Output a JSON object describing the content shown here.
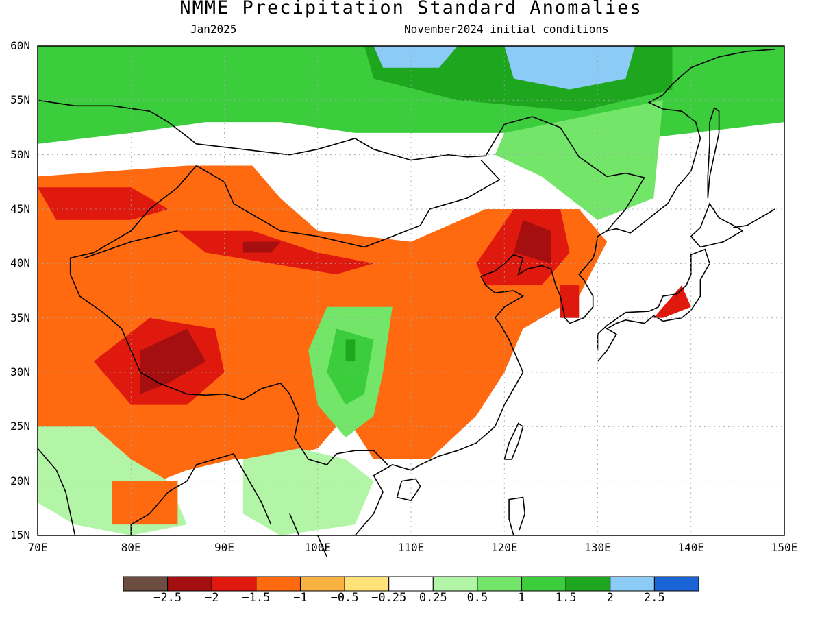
{
  "title": "NMME Precipitation Standard Anomalies",
  "subtitle_left": "Jan2025",
  "subtitle_right": "November2024 initial conditions",
  "map": {
    "lon_range": [
      70,
      150
    ],
    "lat_range": [
      15,
      60
    ],
    "lat_labels": [
      "60N",
      "55N",
      "50N",
      "45N",
      "40N",
      "35N",
      "30N",
      "25N",
      "20N",
      "15N"
    ],
    "lon_labels": [
      "70E",
      "80E",
      "90E",
      "100E",
      "110E",
      "120E",
      "130E",
      "140E",
      "150E"
    ],
    "grid": true
  },
  "colorbar": {
    "colors": [
      "#6d4c41",
      "#a50f0f",
      "#e0190e",
      "#ff6a10",
      "#f9b142",
      "#ffe27a",
      "#ffffff",
      "#b3f5a7",
      "#73e66a",
      "#3ccd3c",
      "#1fa61f",
      "#8ccbf5",
      "#1a64d6"
    ],
    "labels": [
      "−2.5",
      "−2",
      "−1.5",
      "−1",
      "−0.5",
      "−0.25",
      "0.25",
      "0.5",
      "1",
      "1.5",
      "2",
      "2.5"
    ]
  },
  "anomaly_regions": [
    {
      "name": "siberia-north",
      "level": 1.5,
      "poly": [
        [
          70,
          60
        ],
        [
          150,
          60
        ],
        [
          150,
          53
        ],
        [
          130,
          51
        ],
        [
          120,
          52
        ],
        [
          112,
          52
        ],
        [
          104,
          52
        ],
        [
          96,
          53
        ],
        [
          88,
          53
        ],
        [
          80,
          52
        ],
        [
          70,
          51
        ]
      ]
    },
    {
      "name": "siberia-wet-inner",
      "level": 2,
      "poly": [
        [
          105,
          60
        ],
        [
          138,
          60
        ],
        [
          138,
          56
        ],
        [
          128,
          54
        ],
        [
          115,
          55
        ],
        [
          106,
          57
        ]
      ]
    },
    {
      "name": "siberia-blue-1",
      "level": 2.5,
      "poly": [
        [
          120,
          60
        ],
        [
          134,
          60
        ],
        [
          133,
          57
        ],
        [
          127,
          56
        ],
        [
          121,
          57
        ]
      ]
    },
    {
      "name": "siberia-blue-2",
      "level": 2.5,
      "poly": [
        [
          106,
          60
        ],
        [
          115,
          60
        ],
        [
          113,
          58
        ],
        [
          107,
          58
        ]
      ]
    },
    {
      "name": "far-east-green",
      "level": 1,
      "poly": [
        [
          120,
          52
        ],
        [
          137,
          55
        ],
        [
          136,
          46
        ],
        [
          130,
          44
        ],
        [
          124,
          48
        ],
        [
          119,
          50
        ]
      ]
    },
    {
      "name": "kazakh-dry",
      "level": -1,
      "poly": [
        [
          70,
          48
        ],
        [
          86,
          49
        ],
        [
          93,
          49
        ],
        [
          96,
          46
        ],
        [
          100,
          43
        ],
        [
          110,
          42
        ],
        [
          118,
          45
        ],
        [
          128,
          45
        ],
        [
          131,
          42
        ],
        [
          128,
          37
        ],
        [
          122,
          34
        ],
        [
          120,
          30
        ],
        [
          117,
          26
        ],
        [
          112,
          22
        ],
        [
          106,
          22
        ],
        [
          103,
          26
        ],
        [
          100,
          23
        ],
        [
          96,
          22
        ],
        [
          91,
          22
        ],
        [
          86,
          21
        ],
        [
          80,
          19
        ],
        [
          75,
          22
        ],
        [
          70,
          25
        ]
      ]
    },
    {
      "name": "kazakh-red",
      "level": -1.5,
      "poly": [
        [
          70,
          47
        ],
        [
          80,
          47
        ],
        [
          84,
          45
        ],
        [
          80,
          44
        ],
        [
          72,
          44
        ]
      ]
    },
    {
      "name": "tarim-red",
      "level": -1.5,
      "poly": [
        [
          85,
          43
        ],
        [
          93,
          43
        ],
        [
          100,
          41
        ],
        [
          106,
          40
        ],
        [
          102,
          39
        ],
        [
          95,
          40
        ],
        [
          88,
          41
        ]
      ]
    },
    {
      "name": "tarim-dark",
      "level": -2,
      "poly": [
        [
          92,
          42
        ],
        [
          96,
          42
        ],
        [
          95,
          41
        ],
        [
          92,
          41
        ]
      ]
    },
    {
      "name": "tibet-red",
      "level": -1.5,
      "poly": [
        [
          76,
          31
        ],
        [
          82,
          35
        ],
        [
          89,
          34
        ],
        [
          90,
          30
        ],
        [
          86,
          27
        ],
        [
          80,
          27
        ]
      ]
    },
    {
      "name": "tibet-dark",
      "level": -2,
      "poly": [
        [
          81,
          32
        ],
        [
          86,
          34
        ],
        [
          88,
          31
        ],
        [
          84,
          29
        ],
        [
          81,
          28
        ]
      ]
    },
    {
      "name": "ne-china-red",
      "level": -1.5,
      "poly": [
        [
          117,
          40
        ],
        [
          121,
          45
        ],
        [
          126,
          45
        ],
        [
          127,
          41
        ],
        [
          124,
          38
        ],
        [
          118,
          38
        ]
      ]
    },
    {
      "name": "ne-china-dark",
      "level": -2,
      "poly": [
        [
          121,
          41
        ],
        [
          122,
          44
        ],
        [
          125,
          43
        ],
        [
          125,
          40
        ]
      ]
    },
    {
      "name": "korea-red",
      "level": -1.5,
      "poly": [
        [
          126,
          38
        ],
        [
          128,
          38
        ],
        [
          128,
          35
        ],
        [
          126,
          35
        ]
      ]
    },
    {
      "name": "japan-red",
      "level": -1.5,
      "poly": [
        [
          136,
          35
        ],
        [
          139,
          38
        ],
        [
          140,
          36
        ],
        [
          137,
          35
        ]
      ]
    },
    {
      "name": "sichuan-green",
      "level": 1,
      "poly": [
        [
          101,
          36
        ],
        [
          108,
          36
        ],
        [
          107,
          30
        ],
        [
          106,
          26
        ],
        [
          103,
          24
        ],
        [
          100,
          27
        ],
        [
          99,
          32
        ]
      ]
    },
    {
      "name": "sichuan-green-inner",
      "level": 1.5,
      "poly": [
        [
          102,
          34
        ],
        [
          106,
          33
        ],
        [
          105,
          28
        ],
        [
          103,
          27
        ],
        [
          101,
          30
        ]
      ]
    },
    {
      "name": "sichuan-blue",
      "level": 2,
      "poly": [
        [
          103,
          33
        ],
        [
          104,
          33
        ],
        [
          104,
          31
        ],
        [
          103,
          31
        ]
      ]
    },
    {
      "name": "india-green",
      "level": 0.5,
      "poly": [
        [
          70,
          25
        ],
        [
          76,
          25
        ],
        [
          80,
          22
        ],
        [
          84,
          20
        ],
        [
          86,
          16
        ],
        [
          80,
          15
        ],
        [
          74,
          16
        ],
        [
          70,
          18
        ]
      ]
    },
    {
      "name": "south-green",
      "level": 0.5,
      "poly": [
        [
          92,
          22
        ],
        [
          98,
          23
        ],
        [
          103,
          22
        ],
        [
          106,
          20
        ],
        [
          104,
          16
        ],
        [
          96,
          15
        ],
        [
          92,
          17
        ]
      ]
    },
    {
      "name": "india-dry",
      "level": -1,
      "poly": [
        [
          78,
          20
        ],
        [
          85,
          20
        ],
        [
          85,
          16
        ],
        [
          78,
          16
        ]
      ]
    }
  ]
}
